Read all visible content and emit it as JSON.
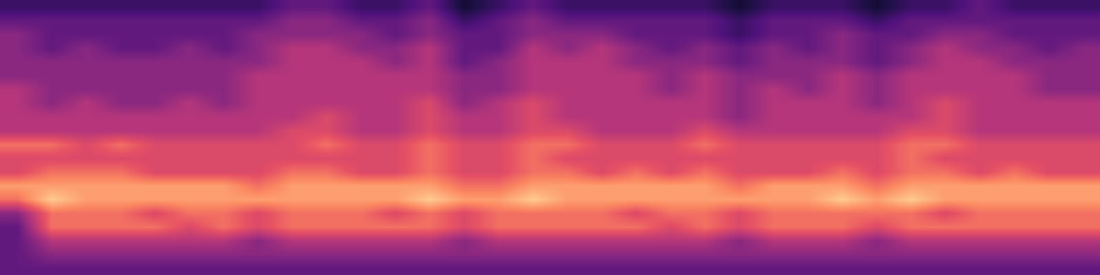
{
  "chart_data": {
    "type": "heatmap",
    "tick_labels": false,
    "zlim": [
      0,
      10
    ],
    "cells": [
      [
        2,
        2,
        2,
        2,
        2,
        2,
        2,
        2,
        3,
        3,
        2,
        2,
        3,
        1,
        2,
        3,
        2,
        2,
        2,
        2,
        2,
        1,
        2,
        2,
        2,
        1,
        2,
        2,
        3,
        2,
        2,
        2
      ],
      [
        3,
        3,
        3,
        3,
        3,
        3,
        3,
        3,
        4,
        4,
        3,
        3,
        4,
        2,
        3,
        4,
        3,
        3,
        3,
        3,
        3,
        2,
        3,
        3,
        3,
        2,
        3,
        3,
        3,
        3,
        3,
        3
      ],
      [
        4,
        3,
        3,
        3,
        3,
        3,
        3,
        4,
        4,
        4,
        4,
        3,
        4,
        3,
        3,
        4,
        4,
        4,
        3,
        3,
        3,
        2,
        3,
        3,
        4,
        3,
        3,
        4,
        4,
        3,
        3,
        3
      ],
      [
        4,
        3,
        4,
        3,
        3,
        4,
        3,
        4,
        5,
        5,
        4,
        4,
        5,
        3,
        3,
        5,
        4,
        5,
        4,
        3,
        4,
        3,
        4,
        3,
        4,
        3,
        4,
        5,
        4,
        4,
        3,
        4
      ],
      [
        4,
        4,
        4,
        4,
        4,
        4,
        4,
        4,
        5,
        5,
        5,
        4,
        5,
        3,
        4,
        5,
        5,
        5,
        4,
        4,
        4,
        3,
        4,
        4,
        4,
        3,
        4,
        5,
        5,
        4,
        4,
        4
      ],
      [
        4,
        4,
        4,
        4,
        4,
        4,
        4,
        5,
        5,
        5,
        5,
        5,
        5,
        4,
        4,
        5,
        5,
        5,
        5,
        4,
        5,
        4,
        4,
        4,
        5,
        4,
        5,
        5,
        5,
        5,
        4,
        4
      ],
      [
        5,
        4,
        4,
        4,
        4,
        4,
        4,
        5,
        5,
        5,
        5,
        5,
        5,
        4,
        4,
        5,
        5,
        5,
        5,
        4,
        5,
        4,
        5,
        4,
        5,
        4,
        5,
        5,
        5,
        5,
        4,
        4
      ],
      [
        5,
        4,
        5,
        4,
        4,
        5,
        4,
        5,
        5,
        5,
        5,
        5,
        6,
        4,
        5,
        6,
        5,
        5,
        5,
        5,
        5,
        4,
        5,
        5,
        5,
        4,
        5,
        6,
        5,
        5,
        5,
        5
      ],
      [
        5,
        5,
        5,
        5,
        5,
        5,
        5,
        5,
        5,
        6,
        5,
        5,
        6,
        5,
        5,
        6,
        5,
        5,
        5,
        5,
        5,
        4,
        5,
        5,
        5,
        5,
        5,
        6,
        5,
        5,
        5,
        5
      ],
      [
        5,
        5,
        5,
        5,
        5,
        5,
        5,
        5,
        6,
        6,
        5,
        5,
        6,
        5,
        5,
        6,
        6,
        5,
        5,
        5,
        6,
        5,
        5,
        5,
        5,
        5,
        6,
        6,
        5,
        5,
        5,
        5
      ],
      [
        7,
        7,
        6,
        7,
        6,
        6,
        6,
        6,
        6,
        7,
        6,
        6,
        7,
        6,
        6,
        7,
        7,
        6,
        6,
        6,
        7,
        6,
        6,
        6,
        6,
        6,
        7,
        7,
        6,
        6,
        6,
        6
      ],
      [
        6,
        6,
        6,
        6,
        6,
        6,
        6,
        6,
        6,
        6,
        6,
        6,
        7,
        6,
        6,
        7,
        6,
        6,
        6,
        6,
        6,
        6,
        6,
        6,
        6,
        6,
        7,
        6,
        6,
        6,
        6,
        6
      ],
      [
        6,
        7,
        7,
        7,
        6,
        6,
        6,
        6,
        7,
        7,
        6,
        6,
        7,
        6,
        6,
        7,
        7,
        6,
        7,
        6,
        7,
        6,
        6,
        6,
        7,
        6,
        7,
        7,
        6,
        7,
        6,
        6
      ],
      [
        8,
        8,
        8,
        8,
        8,
        8,
        8,
        7,
        8,
        8,
        8,
        8,
        8,
        7,
        7,
        8,
        8,
        8,
        8,
        8,
        8,
        7,
        8,
        8,
        8,
        7,
        8,
        8,
        8,
        8,
        8,
        8
      ],
      [
        7,
        9,
        8,
        8,
        8,
        8,
        8,
        8,
        8,
        8,
        8,
        8,
        9,
        8,
        8,
        9,
        8,
        8,
        8,
        8,
        8,
        8,
        8,
        8,
        9,
        8,
        9,
        8,
        8,
        8,
        8,
        8
      ],
      [
        4,
        7,
        7,
        7,
        6,
        7,
        7,
        6,
        7,
        7,
        7,
        6,
        7,
        6,
        7,
        7,
        7,
        7,
        6,
        7,
        7,
        6,
        7,
        7,
        7,
        7,
        7,
        6,
        7,
        7,
        7,
        7
      ],
      [
        3,
        7,
        7,
        7,
        7,
        6,
        7,
        6,
        7,
        7,
        7,
        7,
        7,
        6,
        7,
        7,
        7,
        7,
        7,
        6,
        7,
        6,
        7,
        7,
        7,
        6,
        7,
        7,
        7,
        7,
        7,
        7
      ],
      [
        3,
        5,
        5,
        5,
        5,
        5,
        5,
        4,
        5,
        5,
        5,
        5,
        5,
        4,
        5,
        5,
        5,
        5,
        5,
        5,
        5,
        4,
        5,
        5,
        5,
        4,
        5,
        5,
        5,
        5,
        5,
        5
      ],
      [
        3,
        4,
        4,
        4,
        4,
        4,
        4,
        4,
        4,
        4,
        4,
        4,
        4,
        4,
        4,
        4,
        4,
        4,
        4,
        4,
        4,
        4,
        4,
        4,
        4,
        4,
        4,
        4,
        4,
        4,
        4,
        4
      ],
      [
        3,
        3,
        3,
        3,
        3,
        3,
        3,
        3,
        3,
        3,
        3,
        3,
        3,
        3,
        3,
        3,
        3,
        3,
        3,
        3,
        3,
        3,
        3,
        3,
        3,
        3,
        3,
        3,
        3,
        3,
        3,
        3
      ]
    ]
  }
}
